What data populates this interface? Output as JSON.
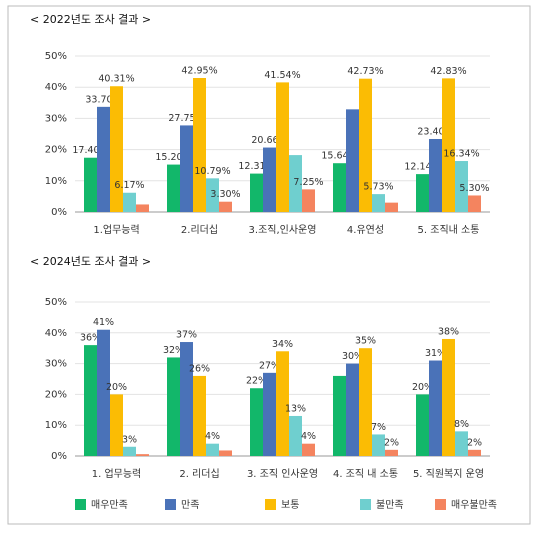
{
  "chart_data": [
    {
      "type": "bar",
      "title": "< 2022년도 조사 결과 >",
      "categories": [
        "1.업무능력",
        "2.리더십",
        "3.조직,인사운영",
        "4.유연성",
        "5. 조직내 소통"
      ],
      "series": [
        {
          "color": "#12b76a",
          "values": [
            17.4,
            15.2,
            12.31,
            15.64,
            12.14
          ],
          "value_labels": [
            "17.40%",
            "15.20%",
            "12.31%",
            "15.64%",
            "12.14%"
          ]
        },
        {
          "color": "#4a72b8",
          "values": [
            33.7,
            27.75,
            20.66,
            32.9,
            23.4
          ],
          "value_labels": [
            "33.70%",
            "27.75%",
            "20.66%",
            null,
            "23.40%"
          ]
        },
        {
          "color": "#fbbc04",
          "values": [
            40.31,
            42.95,
            41.54,
            42.73,
            42.83
          ],
          "value_labels": [
            "40.31%",
            "42.95%",
            "41.54%",
            "42.73%",
            "42.83%"
          ]
        },
        {
          "color": "#6fcfcf",
          "values": [
            6.17,
            10.79,
            18.24,
            5.73,
            16.34
          ],
          "value_labels": [
            "6.17%",
            "10.79%",
            null,
            "5.73%",
            "16.34%"
          ]
        },
        {
          "color": "#f4845f",
          "values": [
            2.42,
            3.3,
            7.25,
            3.0,
            5.3
          ],
          "value_labels": [
            null,
            "3.30%",
            "7.25%",
            null,
            "5.30%"
          ]
        }
      ],
      "ylim": [
        0,
        50
      ],
      "yticks": [
        {
          "value": 0,
          "label": "0%"
        },
        {
          "value": 10,
          "label": "10%"
        },
        {
          "value": 20,
          "label": "20%"
        },
        {
          "value": 30,
          "label": "30%"
        },
        {
          "value": 40,
          "label": "40%"
        },
        {
          "value": 50,
          "label": "50%"
        }
      ],
      "grid": true
    },
    {
      "type": "bar",
      "title": "< 2024년도 조사 결과 >",
      "categories": [
        "1. 업무능력",
        "2. 리더십",
        "3. 조직 인사운영",
        "4. 조직 내 소통",
        "5. 직원복지 운영"
      ],
      "series": [
        {
          "name": "매우만족",
          "color": "#12b76a",
          "values": [
            36,
            32,
            22,
            26,
            20
          ],
          "value_labels": [
            "36%",
            "32%",
            "22%",
            null,
            "20%"
          ]
        },
        {
          "name": "만족",
          "color": "#4a72b8",
          "values": [
            41,
            37,
            27,
            30,
            31
          ],
          "value_labels": [
            "41%",
            "37%",
            "27%",
            "30%",
            "31%"
          ]
        },
        {
          "name": "보통",
          "color": "#fbbc04",
          "values": [
            20,
            26,
            34,
            35,
            38
          ],
          "value_labels": [
            "20%",
            "26%",
            "34%",
            "35%",
            "38%"
          ]
        },
        {
          "name": "불만족",
          "color": "#6fcfcf",
          "values": [
            3,
            4,
            13,
            7,
            8
          ],
          "value_labels": [
            "3%",
            "4%",
            "13%",
            "7%",
            "8%"
          ]
        },
        {
          "name": "매우불만족",
          "color": "#f4845f",
          "values": [
            0.6,
            1.8,
            4,
            2,
            2
          ],
          "value_labels": [
            null,
            null,
            "4%",
            "2%",
            "2%"
          ]
        }
      ],
      "ylim": [
        0,
        50
      ],
      "yticks": [
        {
          "value": 0,
          "label": "0%"
        },
        {
          "value": 10,
          "label": "10%"
        },
        {
          "value": 20,
          "label": "20%"
        },
        {
          "value": 30,
          "label": "30%"
        },
        {
          "value": 40,
          "label": "40%"
        },
        {
          "value": 50,
          "label": "50%"
        }
      ],
      "grid": true
    }
  ]
}
